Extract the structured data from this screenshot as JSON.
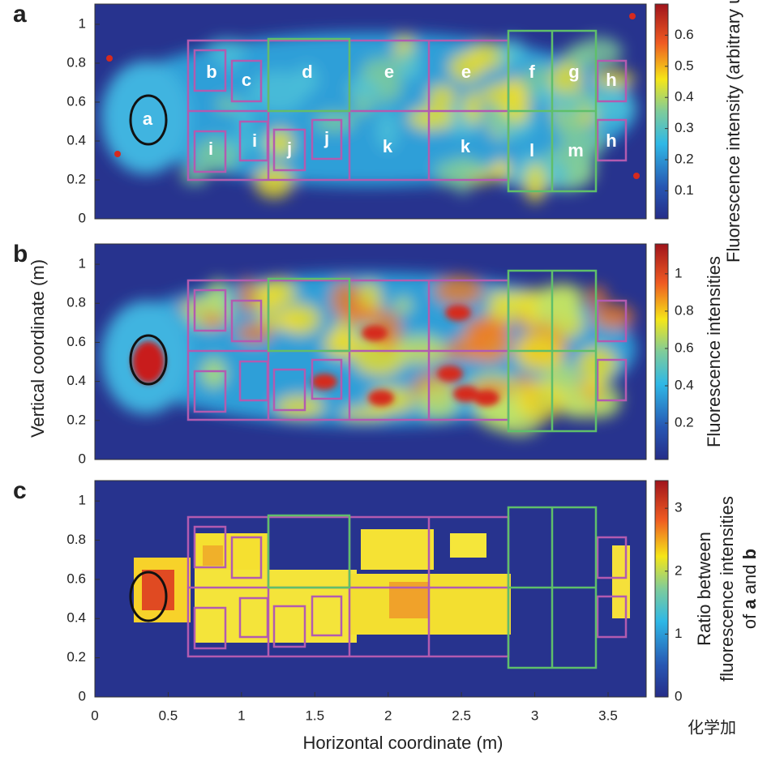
{
  "chart_data": [
    {
      "type": "heatmap",
      "panel": "a",
      "xlim": [
        0,
        3.76
      ],
      "ylim": [
        0,
        1.104
      ],
      "yticks": [
        0,
        0.2,
        0.4,
        0.6,
        0.8,
        1
      ],
      "clim": [
        0.01,
        0.7
      ],
      "cticks": [
        0.1,
        0.2,
        0.3,
        0.4,
        0.5,
        0.6
      ],
      "colorbar_label": "Fluorescence intensity (arbitrary units)",
      "regions": [
        "a",
        "b",
        "c",
        "d",
        "e",
        "e",
        "f",
        "g",
        "h",
        "i",
        "i",
        "j",
        "j",
        "k",
        "k",
        "l",
        "m",
        "h"
      ]
    },
    {
      "type": "heatmap",
      "panel": "b",
      "xlim": [
        0,
        3.76
      ],
      "ylim": [
        0,
        1.104
      ],
      "yticks": [
        0,
        0.2,
        0.4,
        0.6,
        0.8,
        1
      ],
      "clim": [
        0.005,
        1.16
      ],
      "cticks": [
        0.2,
        0.4,
        0.6,
        0.8,
        1
      ],
      "colorbar_label": "Fluorescence intensities",
      "ylabel": "Vertical coordinate (m)"
    },
    {
      "type": "heatmap",
      "panel": "c",
      "xlim": [
        0,
        3.76
      ],
      "ylim": [
        0,
        1.104
      ],
      "yticks": [
        0,
        0.2,
        0.4,
        0.6,
        0.8,
        1
      ],
      "xticks": [
        0,
        0.5,
        1,
        1.5,
        2,
        2.5,
        3,
        3.5
      ],
      "xlabel": "Horizontal coordinate (m)",
      "clim": [
        0,
        3.44
      ],
      "cticks": [
        0,
        1,
        2,
        3
      ],
      "colorbar_label_lines": [
        "Ratio between",
        "fluorescence intensities"
      ],
      "colorbar_label_parts": [
        "of ",
        "a",
        " and ",
        "b"
      ],
      "watermark": "化学加"
    }
  ]
}
